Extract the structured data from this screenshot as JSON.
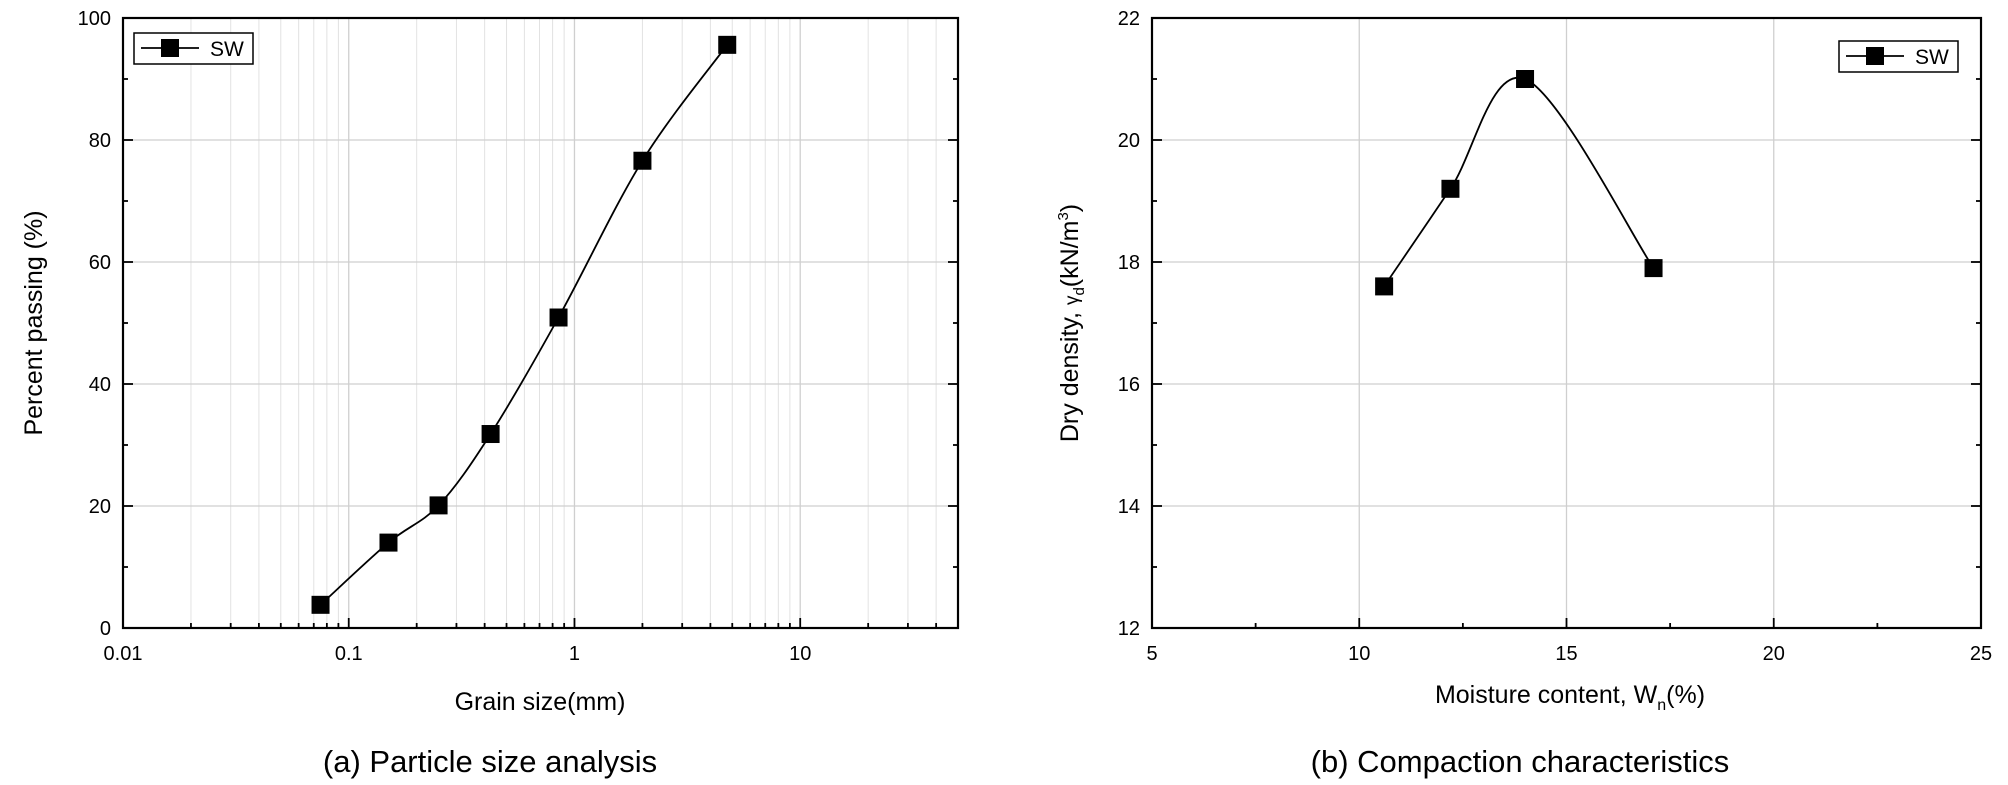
{
  "chart_data": [
    {
      "type": "line",
      "caption": "(a) Particle size analysis",
      "xlabel": "Grain size(mm)",
      "ylabel": "Percent passing (%)",
      "xscale": "log",
      "xlim": [
        0.01,
        50
      ],
      "ylim": [
        0,
        100
      ],
      "xticks": [
        0.01,
        0.1,
        1,
        10
      ],
      "xtick_labels": [
        "0.01",
        "0.1",
        "1",
        "10"
      ],
      "yticks": [
        0,
        20,
        40,
        60,
        80,
        100
      ],
      "ytick_labels": [
        "0",
        "20",
        "40",
        "60",
        "80",
        "100"
      ],
      "grid": true,
      "legend_position": "top-left",
      "series": [
        {
          "name": "SW",
          "x": [
            0.075,
            0.15,
            0.25,
            0.425,
            0.85,
            2.0,
            4.75
          ],
          "y": [
            3.8,
            14.0,
            20.1,
            31.8,
            50.9,
            76.6,
            95.6
          ]
        }
      ]
    },
    {
      "type": "line",
      "caption": "(b) Compaction characteristics",
      "xlabel_main": "Moisture content, W",
      "xlabel_sub": "n",
      "xlabel_tail": "(%)",
      "ylabel_main": "Dry density, ",
      "ylabel_gamma": "γ",
      "ylabel_sub": "d",
      "ylabel_mid": "(kN/m",
      "ylabel_sup": "3",
      "ylabel_tail": ")",
      "xlim": [
        5,
        25
      ],
      "ylim": [
        12,
        22
      ],
      "xticks": [
        5,
        10,
        15,
        20,
        25
      ],
      "xtick_labels": [
        "5",
        "10",
        "15",
        "20",
        "25"
      ],
      "yticks": [
        12,
        14,
        16,
        18,
        20,
        22
      ],
      "ytick_labels": [
        "12",
        "14",
        "16",
        "18",
        "20",
        "22"
      ],
      "grid": true,
      "legend_position": "top-right",
      "series": [
        {
          "name": "SW",
          "x": [
            10.6,
            12.2,
            14.0,
            17.1
          ],
          "y": [
            17.6,
            19.2,
            21.0,
            17.9
          ]
        }
      ]
    }
  ]
}
